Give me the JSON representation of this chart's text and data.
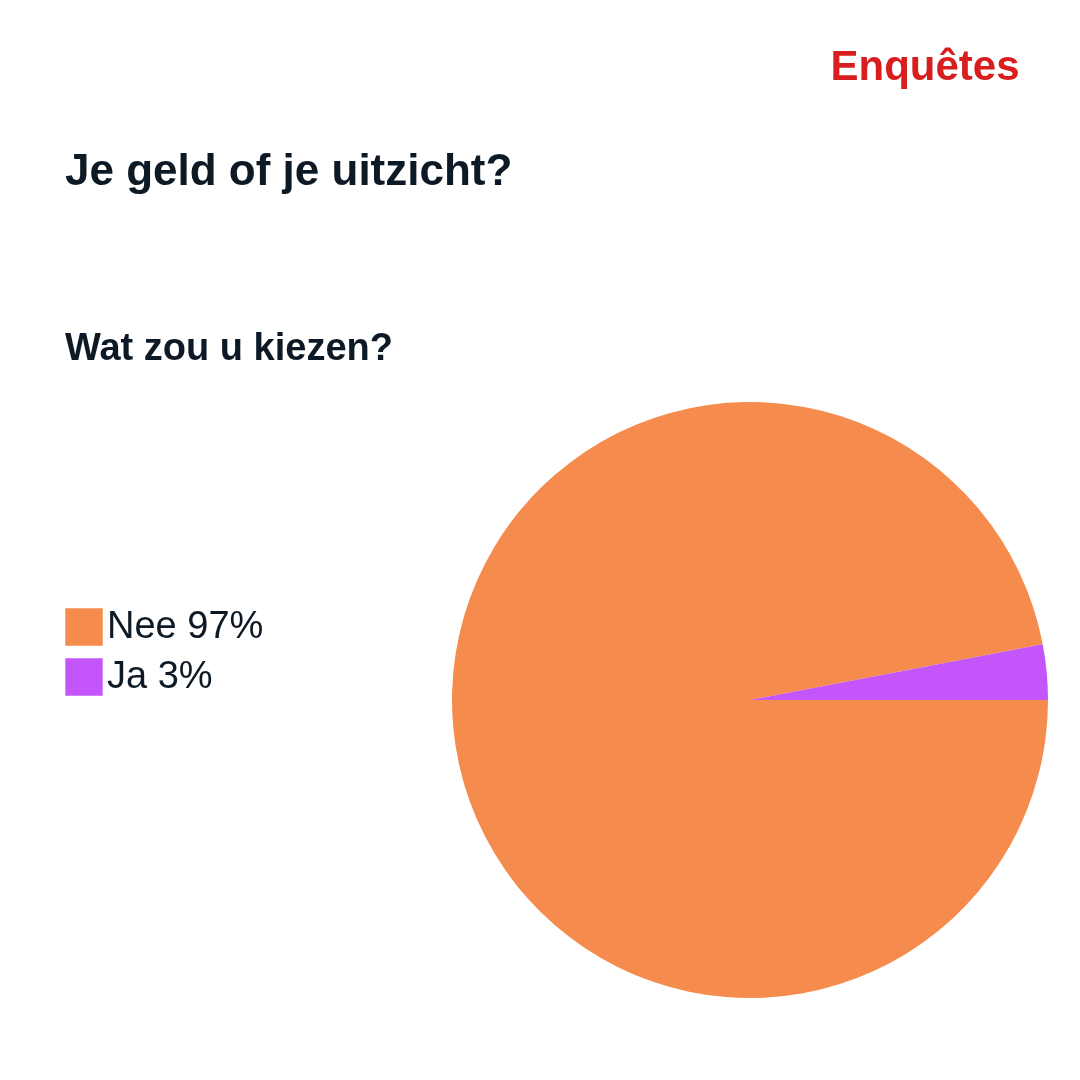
{
  "chart_data": {
    "type": "pie",
    "title": "Je geld of je uitzicht?",
    "subtitle": "Wat zou u kiezen?",
    "annotations": [
      "Enquêtes"
    ],
    "categories": [
      "Nee",
      "Ja"
    ],
    "values": [
      97,
      3
    ],
    "value_labels": [
      "97%",
      "3%"
    ],
    "colors": [
      "#f58b4c",
      "#c355fa"
    ],
    "legend": "left"
  }
}
